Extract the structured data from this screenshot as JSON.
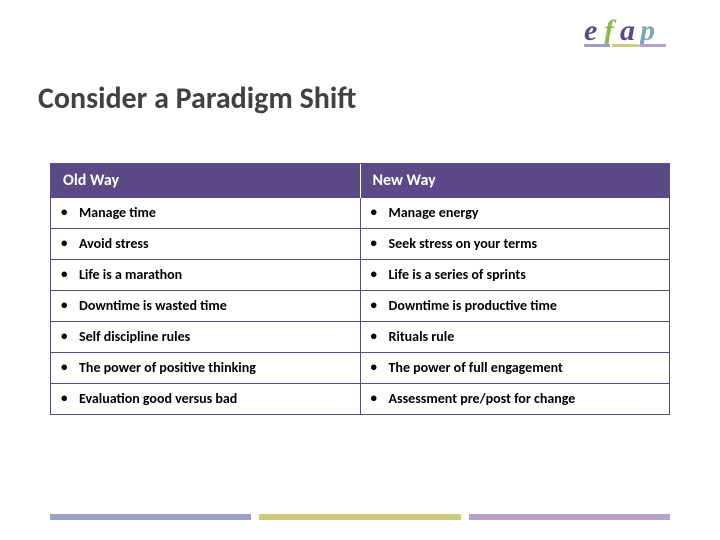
{
  "title": "Consider a Paradigm Shift",
  "logo": {
    "text": "efap",
    "colors": {
      "e": "#5b4a87",
      "f": "#8cb84e",
      "a": "#5b4a87",
      "p": "#7aa6b8"
    },
    "underline_colors": [
      "#9aa0c9",
      "#cfc97a",
      "#b79fc9"
    ]
  },
  "table": {
    "header_bg": "#5b4a87",
    "header_fg": "#ffffff",
    "border_color": "#5b4a87",
    "cell_fontsize": 14,
    "header_fontsize": 16,
    "columns": [
      "Old Way",
      "New Way"
    ],
    "rows": [
      [
        "Manage time",
        "Manage energy"
      ],
      [
        "Avoid stress",
        "Seek stress on your terms"
      ],
      [
        "Life is a marathon",
        "Life is a series of sprints"
      ],
      [
        "Downtime is wasted time",
        "Downtime is productive time"
      ],
      [
        "Self discipline rules",
        "Rituals rule"
      ],
      [
        "The power of positive thinking",
        "The power of full engagement"
      ],
      [
        "Evaluation good versus bad",
        "Assessment pre/post for change"
      ]
    ]
  },
  "footer_bar_colors": [
    "#9aa0c9",
    "#cfc97a",
    "#b79fc9"
  ]
}
